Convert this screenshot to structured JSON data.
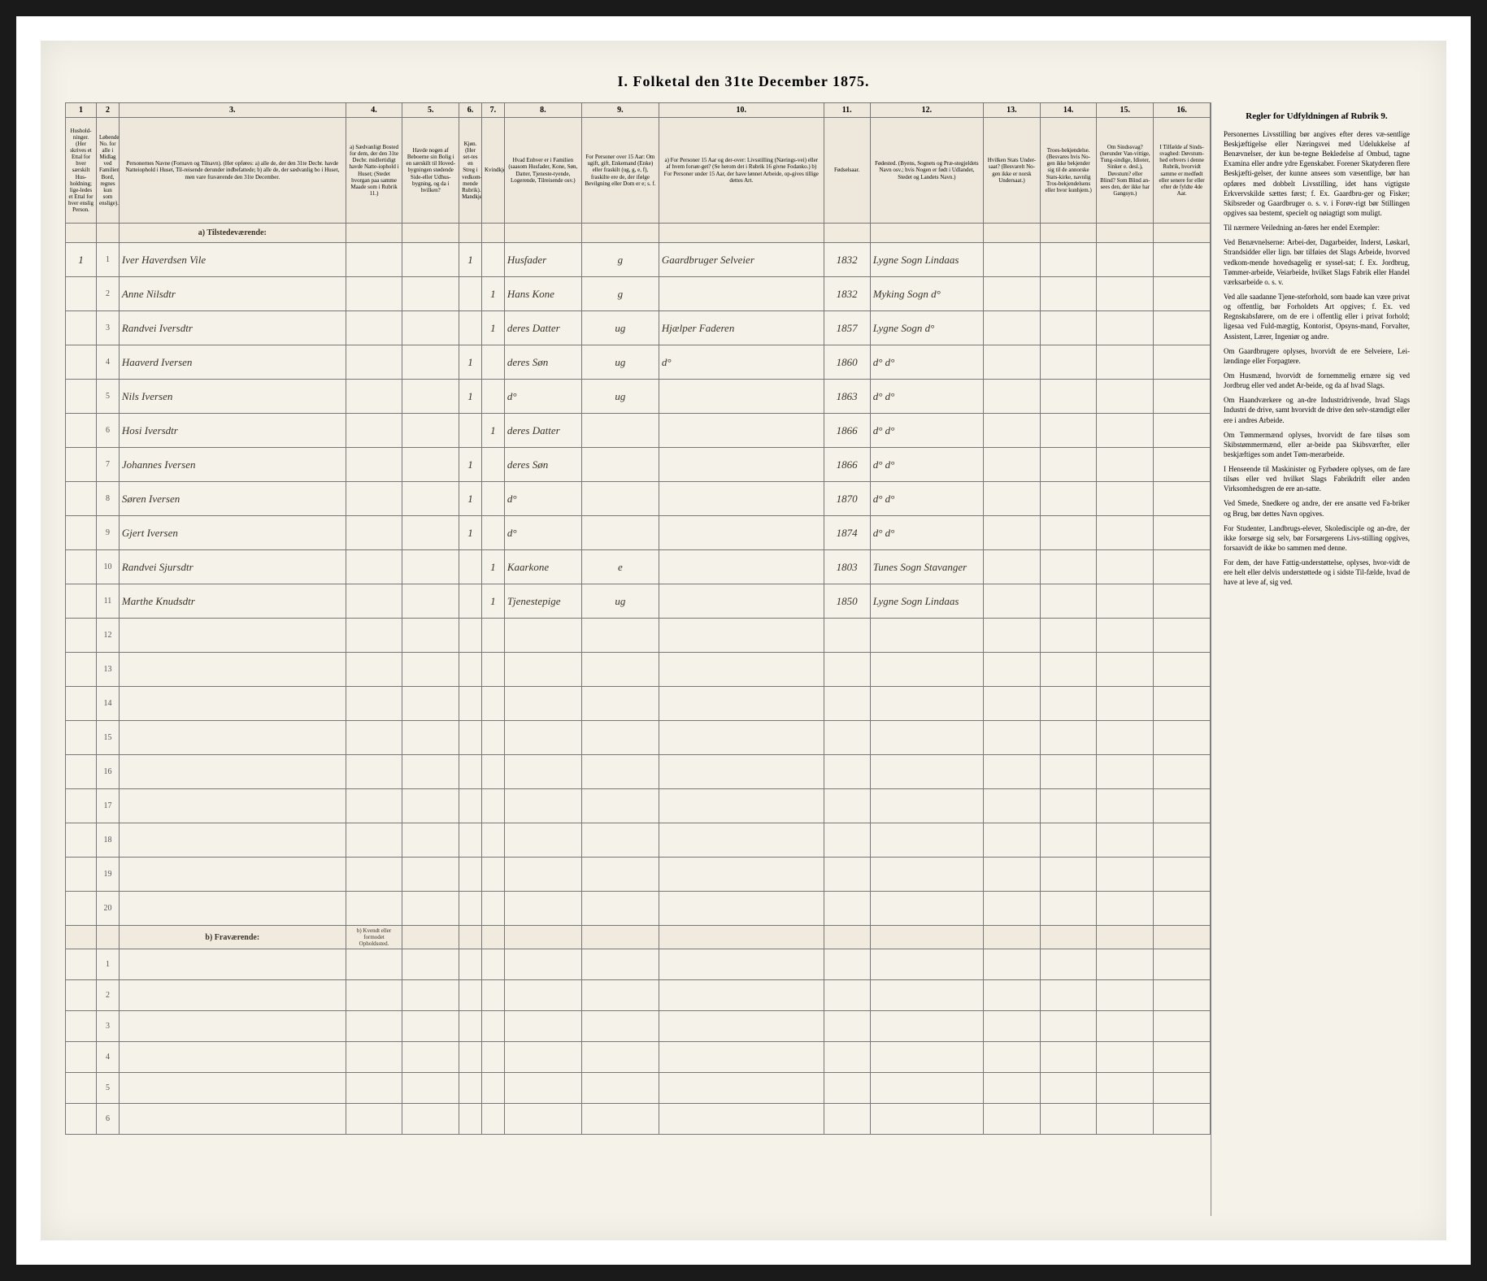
{
  "title": "I. Folketal den 31te December 1875.",
  "columns": {
    "numbers": [
      "1",
      "2",
      "3.",
      "4.",
      "5.",
      "6.",
      "7.",
      "8.",
      "9.",
      "10.",
      "11.",
      "12.",
      "13.",
      "14.",
      "15.",
      "16."
    ],
    "widths": [
      30,
      22,
      220,
      55,
      55,
      22,
      22,
      75,
      75,
      160,
      45,
      110,
      55,
      55,
      55,
      55
    ],
    "headers": [
      "Hushold-ninger. (Her skrives et Ettal for hver særskilt Hus-holdning; lige-ledes et Ettal for hver enslig Person.",
      "Løbende No. for alle i Midlag ved Familiens Bord, regnes kun som enslige).",
      "Personernes Navne (Fornavn og Tilnavn).\n(Her opføres:\na) alle de, der den 31te Decbr. havde Natteiophold i Huset, Til-reisende derunder indbefattede;\nb) alle de, der sædvanlig bo i Huset, men vare fraværende den 31te December.",
      "a) Sædvanligt Bosted for dem, der den 31te Decbr. midlertidigt havde Natte-iophold i Huset; (Stedet hvorgan paa samme Maade som i Rubrik 11.)",
      "Havde nogen af Beboerne sin Bolig i en særskilt til Hoved-bygningen stødende Side-eller Udhus-bygning, og da i hvilken?",
      "Kjøn. (Her set-tes en Streg i vedkom-mende Rubrik).\nMandkjøn.",
      "Kvindkjøn.",
      "Hvad Enhver er i Familien (saasom Husfader, Kone, Søn, Datter, Tjeneste-tyende, Logerende, Tilreisende osv.)",
      "For Personer over 15 Aar: Om ugift, gift, Enkemand (Enke) eller fraskilt (ug, g, e, f), fraskilte ere de, der ifølge Bevilgning eller Dom er e; s. f.",
      "a) For Personer 15 Aar og der-over: Livsstilling (Nærings-vei) eller af hvem forsør-get? (Se herom det i Rubrik 16 givne Fodanko.)\nb) For Personer under 15 Aar, der have lønnet Arbeide, op-gives tillige dettes Art.",
      "Fødselsaar.",
      "Fødested.\n(Byens, Sognets og Præ-stegjeldets Navn osv.; hvis Nogen er født i Udlandet, Stedet og Landets Navn.)",
      "Hvilken Stats Under-saat? (Besvarelt No-gen ikke er norsk Undersaat.)",
      "Troes-bekjendelse. (Besvares hvis No-gen ikke bekjender sig til de annorske Stats-kirke, navnlig Tros-bekjendelsens eller hvor kunhjem.)",
      "Om Sindssvag? (herunder Van-vittige, Tung-sindige, Idioter, Sinker e. desl.), Døvstum? eller Blind? Som Blind an-sees den, der ikke har Gangsyn.)",
      "I Tilfælde af Sinds-svaghed: Døvstum-hed erhvers i denne Rubrik, hvorvidt samme er medfødt eller senere for eller efter de fyldte 4de Aar."
    ]
  },
  "section_present": "a) Tilstedeværende:",
  "section_absent": "b) Fraværende:",
  "absent_note": "b) Kvendt eller formodet Opholdssted.",
  "rows": [
    {
      "n": "1",
      "hh": "1",
      "name": "Iver Haverdsen Vile",
      "c4": "",
      "c5": "",
      "c6": "1",
      "c7": "",
      "c8": "Husfader",
      "c9": "g",
      "c10": "Gaardbruger Selveier",
      "c11": "1832",
      "c12": "Lygne Sogn Lindaas",
      "c13": "",
      "c14": "",
      "c15": "",
      "c16": ""
    },
    {
      "n": "2",
      "hh": "",
      "name": "Anne Nilsdtr",
      "c4": "",
      "c5": "",
      "c6": "",
      "c7": "1",
      "c8": "Hans Kone",
      "c9": "g",
      "c10": "",
      "c11": "1832",
      "c12": "Myking Sogn d°",
      "c13": "",
      "c14": "",
      "c15": "",
      "c16": ""
    },
    {
      "n": "3",
      "hh": "",
      "name": "Randvei Iversdtr",
      "c4": "",
      "c5": "",
      "c6": "",
      "c7": "1",
      "c8": "deres Datter",
      "c9": "ug",
      "c10": "Hjælper Faderen",
      "c11": "1857",
      "c12": "Lygne Sogn d°",
      "c13": "",
      "c14": "",
      "c15": "",
      "c16": ""
    },
    {
      "n": "4",
      "hh": "",
      "name": "Haaverd Iversen",
      "c4": "",
      "c5": "",
      "c6": "1",
      "c7": "",
      "c8": "deres Søn",
      "c9": "ug",
      "c10": "d°",
      "c11": "1860",
      "c12": "d°  d°",
      "c13": "",
      "c14": "",
      "c15": "",
      "c16": ""
    },
    {
      "n": "5",
      "hh": "",
      "name": "Nils Iversen",
      "c4": "",
      "c5": "",
      "c6": "1",
      "c7": "",
      "c8": "d°",
      "c9": "ug",
      "c10": "",
      "c11": "1863",
      "c12": "d°  d°",
      "c13": "",
      "c14": "",
      "c15": "",
      "c16": ""
    },
    {
      "n": "6",
      "hh": "",
      "name": "Hosi Iversdtr",
      "c4": "",
      "c5": "",
      "c6": "",
      "c7": "1",
      "c8": "deres Datter",
      "c9": "",
      "c10": "",
      "c11": "1866",
      "c12": "d°  d°",
      "c13": "",
      "c14": "",
      "c15": "",
      "c16": ""
    },
    {
      "n": "7",
      "hh": "",
      "name": "Johannes Iversen",
      "c4": "",
      "c5": "",
      "c6": "1",
      "c7": "",
      "c8": "deres Søn",
      "c9": "",
      "c10": "",
      "c11": "1866",
      "c12": "d°  d°",
      "c13": "",
      "c14": "",
      "c15": "",
      "c16": ""
    },
    {
      "n": "8",
      "hh": "",
      "name": "Søren Iversen",
      "c4": "",
      "c5": "",
      "c6": "1",
      "c7": "",
      "c8": "d°",
      "c9": "",
      "c10": "",
      "c11": "1870",
      "c12": "d°  d°",
      "c13": "",
      "c14": "",
      "c15": "",
      "c16": ""
    },
    {
      "n": "9",
      "hh": "",
      "name": "Gjert Iversen",
      "c4": "",
      "c5": "",
      "c6": "1",
      "c7": "",
      "c8": "d°",
      "c9": "",
      "c10": "",
      "c11": "1874",
      "c12": "d°  d°",
      "c13": "",
      "c14": "",
      "c15": "",
      "c16": ""
    },
    {
      "n": "10",
      "hh": "",
      "name": "Randvei Sjursdtr",
      "c4": "",
      "c5": "",
      "c6": "",
      "c7": "1",
      "c8": "Kaarkone",
      "c9": "e",
      "c10": "",
      "c11": "1803",
      "c12": "Tunes Sogn Stavanger",
      "c13": "",
      "c14": "",
      "c15": "",
      "c16": ""
    },
    {
      "n": "11",
      "hh": "",
      "name": "Marthe Knudsdtr",
      "c4": "",
      "c5": "",
      "c6": "",
      "c7": "1",
      "c8": "Tjenestepige",
      "c9": "ug",
      "c10": "",
      "c11": "1850",
      "c12": "Lygne Sogn Lindaas",
      "c13": "",
      "c14": "",
      "c15": "",
      "c16": ""
    }
  ],
  "empty_present_rows": [
    "12",
    "13",
    "14",
    "15",
    "16",
    "17",
    "18",
    "19",
    "20"
  ],
  "empty_absent_rows": [
    "1",
    "2",
    "3",
    "4",
    "5",
    "6"
  ],
  "sidebar": {
    "title": "Regler for Udfyldningen af Rubrik 9.",
    "paragraphs": [
      "Personernes Livsstilling bør angives efter deres væ-sentlige Beskjæftigelse eller Næringsvei med Udelukkelse af Benævnelser, der kun be-tegne Bekledelse af Ombud, tagne Examina eller andre ydre Egenskaber. Forener Skatyderen flere Beskjæfti-gelser, der kunne ansees som væsentlige, bør han opføres med dobbelt Livsstilling, idet hans vigtigste Erkvervskilde sættes først; f. Ex. Gaardbru-ger og Fisker; Skibsreder og Gaardbruger o. s. v. i Forøv-rigt bør Stillingen opgives saa bestemt, specielt og nøiagtigt som muligt.",
      "Til nærmere Veiledning an-føres her endel Exempler:",
      "Ved Benævnelserne: Arbei-der, Dagarbeider, Inderst, Løskarl, Strandsidder eller lign. bør tilføies det Slags Arbeide, hvorved vedkom-mende hovedsagelig er syssel-sat; f. Ex. Jordbrug, Tømmer-arbeide, Veiarbeide, hvilket Slags Fabrik eller Handel værksarbeide o. s. v.",
      "Ved alle saadanne Tjene-steforhold, som baade kan være privat og offentlig, bør Forholdets Art opgives; f. Ex. ved Regnskabsførere, om de ere i offentlig eller i privat forhold; ligesaa ved Fuld-mægtig, Kontorist, Opsyns-mand, Forvalter, Assistent, Lærer, Ingeniør og andre.",
      "Om Gaardbrugere oplyses, hvorvidt de ere Selveiere, Lei-lændinge eller Forpagtere.",
      "Om Husmænd, hvorvidt de fornemmelig ernære sig ved Jordbrug eller ved andet Ar-beide, og da af hvad Slags.",
      "Om Haandværkere og an-dre Industridrivende, hvad Slags Industri de drive, samt hvorvidt de drive den selv-stændigt eller ere i andres Arbeide.",
      "Om Tømmermænd oplyses, hvorvidt de fare tilsøs som Skibstømmermænd, eller ar-beide paa Skibsværfter, eller beskjæftiges som andet Tøm-merarbeide.",
      "I Henseende til Maskinister og Fyrbødere oplyses, om de fare tilsøs eller ved hvilket Slags Fabrikdrift eller anden Virksomhedsgren de ere an-satte.",
      "Ved Smede, Snedkere og andre, der ere ansatte ved Fa-briker og Brug, bør dettes Navn opgives.",
      "For Studenter, Landbrugs-elever, Skoledisciple og an-dre, der ikke forsørge sig selv, bør Forsørgerens Livs-stilling opgives, forsaavidt de ikke bo sammen med denne.",
      "For dem, der have Fattig-understøttelse, oplyses, hvor-vidt de ere helt eller delvis understøttede og i sidste Til-fælde, hvad de have at leve af, sig ved."
    ]
  },
  "colors": {
    "page_bg": "#f5f2ea",
    "frame_bg": "#ffffff",
    "outer_bg": "#1a1a1a",
    "border": "#777777",
    "header_bg": "#ede8db",
    "ink": "#3a3226"
  }
}
